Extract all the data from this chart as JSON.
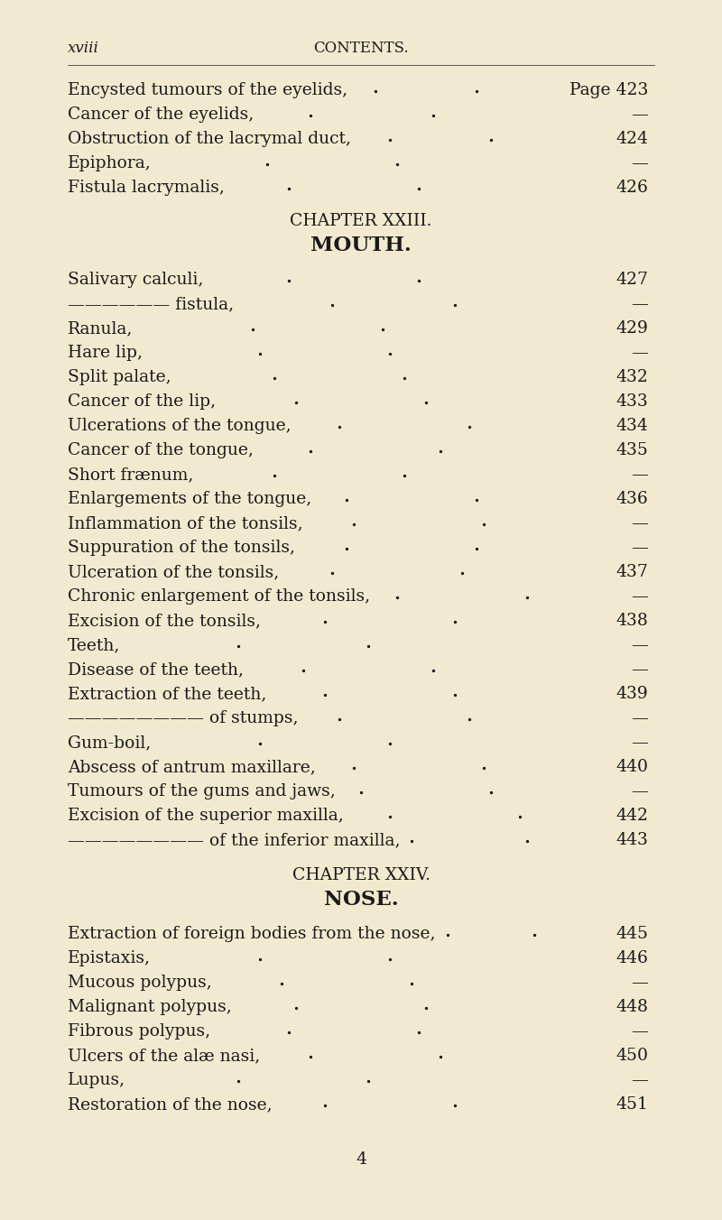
{
  "bg_color": "#f2ead0",
  "text_color": "#1a1a1a",
  "header_left": "xviii",
  "header_center": "CONTENTS.",
  "page_width": 8.0,
  "page_height": 13.52,
  "entries": [
    {
      "text": "Encysted tumours of the eyelids,",
      "page": "Page 423",
      "style": "normal",
      "dot1": 0.52,
      "dot2": 0.66
    },
    {
      "text": "Cancer of the eyelids,",
      "page": "—",
      "style": "normal",
      "dot1": 0.43,
      "dot2": 0.6
    },
    {
      "text": "Obstruction of the lacrymal duct,",
      "page": "424",
      "style": "normal",
      "dot1": 0.54,
      "dot2": 0.68
    },
    {
      "text": "Epiphora,",
      "page": "—",
      "style": "normal",
      "dot1": 0.37,
      "dot2": 0.55
    },
    {
      "text": "Fistula lacrymalis,",
      "page": "426",
      "style": "normal",
      "dot1": 0.4,
      "dot2": 0.58
    },
    {
      "text": "CHAPTER XXIII.",
      "page": "",
      "style": "chapter"
    },
    {
      "text": "MOUTH.",
      "page": "",
      "style": "chapter_title"
    },
    {
      "text": "Salivary calculi,",
      "page": "427",
      "style": "normal",
      "dot1": 0.4,
      "dot2": 0.58
    },
    {
      "text": "—————— fistula,",
      "page": "—",
      "style": "normal",
      "dot1": 0.46,
      "dot2": 0.63
    },
    {
      "text": "Ranula,",
      "page": "429",
      "style": "normal",
      "dot1": 0.35,
      "dot2": 0.53
    },
    {
      "text": "Hare lip,",
      "page": "—",
      "style": "normal",
      "dot1": 0.36,
      "dot2": 0.54
    },
    {
      "text": "Split palate,",
      "page": "432",
      "style": "normal",
      "dot1": 0.38,
      "dot2": 0.56
    },
    {
      "text": "Cancer of the lip,",
      "page": "433",
      "style": "normal",
      "dot1": 0.41,
      "dot2": 0.59
    },
    {
      "text": "Ulcerations of the tongue,",
      "page": "434",
      "style": "normal",
      "dot1": 0.47,
      "dot2": 0.65
    },
    {
      "text": "Cancer of the tongue,",
      "page": "435",
      "style": "normal",
      "dot1": 0.43,
      "dot2": 0.61
    },
    {
      "text": "Short frænum,",
      "page": "—",
      "style": "normal",
      "dot1": 0.38,
      "dot2": 0.56
    },
    {
      "text": "Enlargements of the tongue,",
      "page": "436",
      "style": "normal",
      "dot1": 0.48,
      "dot2": 0.66
    },
    {
      "text": "Inflammation of the tonsils,",
      "page": "—",
      "style": "normal",
      "dot1": 0.49,
      "dot2": 0.67
    },
    {
      "text": "Suppuration of the tonsils,",
      "page": "—",
      "style": "normal",
      "dot1": 0.48,
      "dot2": 0.66
    },
    {
      "text": "Ulceration of the tonsils,",
      "page": "437",
      "style": "normal",
      "dot1": 0.46,
      "dot2": 0.64
    },
    {
      "text": "Chronic enlargement of the tonsils,",
      "page": "—",
      "style": "normal",
      "dot1": 0.55,
      "dot2": 0.73
    },
    {
      "text": "Excision of the tonsils,",
      "page": "438",
      "style": "normal",
      "dot1": 0.45,
      "dot2": 0.63
    },
    {
      "text": "Teeth,",
      "page": "—",
      "style": "normal",
      "dot1": 0.33,
      "dot2": 0.51
    },
    {
      "text": "Disease of the teeth,",
      "page": "—",
      "style": "normal",
      "dot1": 0.42,
      "dot2": 0.6
    },
    {
      "text": "Extraction of the teeth,",
      "page": "439",
      "style": "normal",
      "dot1": 0.45,
      "dot2": 0.63
    },
    {
      "text": "———————— of stumps,",
      "page": "—",
      "style": "normal",
      "dot1": 0.47,
      "dot2": 0.65
    },
    {
      "text": "Gum-boil,",
      "page": "—",
      "style": "normal",
      "dot1": 0.36,
      "dot2": 0.54
    },
    {
      "text": "Abscess of antrum maxillare,",
      "page": "440",
      "style": "normal",
      "dot1": 0.49,
      "dot2": 0.67
    },
    {
      "text": "Tumours of the gums and jaws,",
      "page": "—",
      "style": "normal",
      "dot1": 0.5,
      "dot2": 0.68
    },
    {
      "text": "Excision of the superior maxilla,",
      "page": "442",
      "style": "normal",
      "dot1": 0.54,
      "dot2": 0.72
    },
    {
      "text": "———————— of the inferior maxilla,",
      "page": "443",
      "style": "normal",
      "dot1": 0.57,
      "dot2": 0.73
    },
    {
      "text": "CHAPTER XXIV.",
      "page": "",
      "style": "chapter"
    },
    {
      "text": "NOSE.",
      "page": "",
      "style": "chapter_title"
    },
    {
      "text": "Extraction of foreign bodies from the nose,",
      "page": "445",
      "style": "normal",
      "dot1": 0.62,
      "dot2": 0.74
    },
    {
      "text": "Epistaxis,",
      "page": "446",
      "style": "normal",
      "dot1": 0.36,
      "dot2": 0.54
    },
    {
      "text": "Mucous polypus,",
      "page": "—",
      "style": "normal",
      "dot1": 0.39,
      "dot2": 0.57
    },
    {
      "text": "Malignant polypus,",
      "page": "448",
      "style": "normal",
      "dot1": 0.41,
      "dot2": 0.59
    },
    {
      "text": "Fibrous polypus,",
      "page": "—",
      "style": "normal",
      "dot1": 0.4,
      "dot2": 0.58
    },
    {
      "text": "Ulcers of the alæ nasi,",
      "page": "450",
      "style": "normal",
      "dot1": 0.43,
      "dot2": 0.61
    },
    {
      "text": "Lupus,",
      "page": "—",
      "style": "normal",
      "dot1": 0.33,
      "dot2": 0.51
    },
    {
      "text": "Restoration of the nose,",
      "page": "451",
      "style": "normal",
      "dot1": 0.45,
      "dot2": 0.63
    },
    {
      "text": "4",
      "page": "",
      "style": "page_num_center"
    }
  ]
}
